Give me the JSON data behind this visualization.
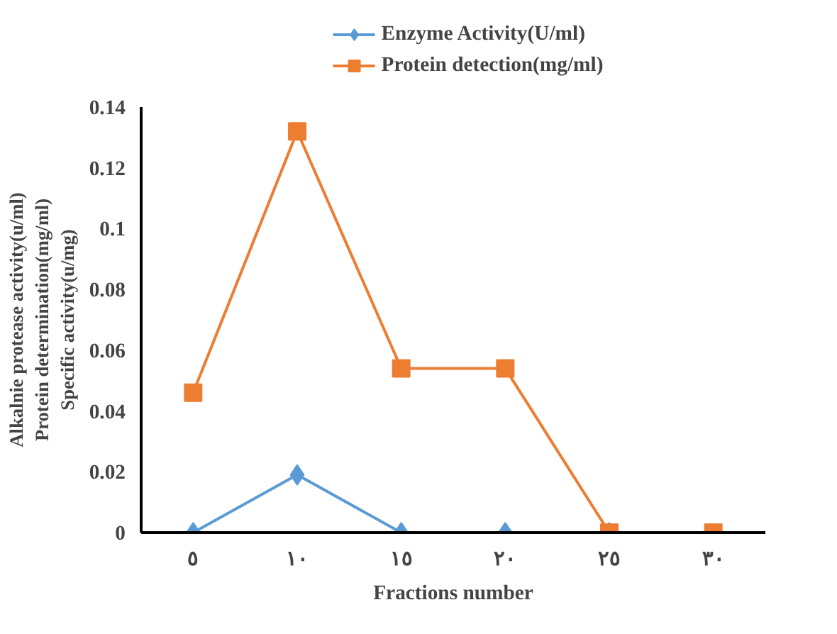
{
  "chart_data": {
    "type": "line",
    "xlabel": "Fractions number",
    "ylabel": "Alkalnie protease activity(u/ml)\nProtein determination(mg/ml)\nSpecific activity(u/mg)",
    "categories": [
      "٥",
      "١٠",
      "١٥",
      "٢٠",
      "٢٥",
      "٣٠"
    ],
    "series": [
      {
        "name": "Enzyme Activity(U/ml)",
        "color": "#5b9bd5",
        "marker": "diamond",
        "values": [
          0,
          0.019,
          0,
          0,
          0,
          null
        ]
      },
      {
        "name": "Protein detection(mg/ml)",
        "color": "#ed7d31",
        "marker": "square",
        "values": [
          0.046,
          0.132,
          0.054,
          0.054,
          0,
          0
        ]
      }
    ],
    "ylim": [
      0,
      0.14
    ],
    "yticks": [
      0,
      0.02,
      0.04,
      0.06,
      0.08,
      0.1,
      0.12,
      0.14
    ],
    "grid": false,
    "legend": "top"
  }
}
